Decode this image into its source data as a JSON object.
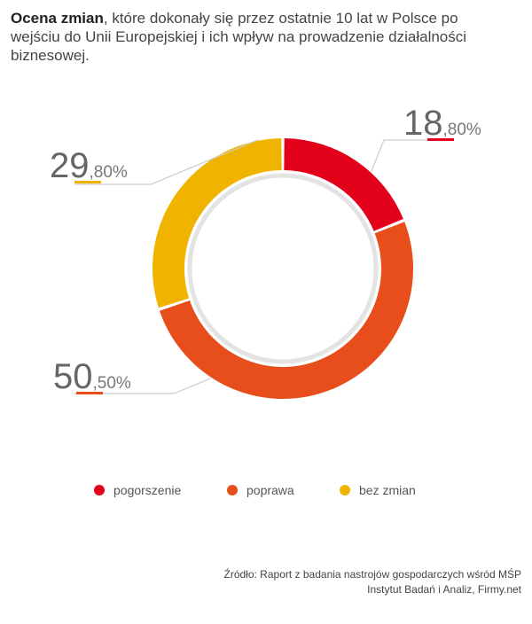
{
  "title": {
    "bold": "Ocena zmian",
    "rest": ", które dokonały się przez ostatnie 10 lat w Polsce po wejściu do Unii Europejskiej i ich wpływ na prowadzenie działalności biznesowej."
  },
  "chart_data": {
    "type": "pie",
    "style": "donut",
    "categories": [
      "pogorszenie",
      "poprawa",
      "bez zmian"
    ],
    "values": [
      18.8,
      50.5,
      29.8
    ],
    "labels": [
      {
        "int": "18",
        "dec": ",80%"
      },
      {
        "int": "50",
        "dec": ",50%"
      },
      {
        "int": "29",
        "dec": ",80%"
      }
    ],
    "colors": [
      "#e2001a",
      "#e84e1b",
      "#f0b400"
    ],
    "legend_position": "bottom"
  },
  "source": {
    "line1": "Źródło: Raport z badania nastrojów gospodarczych wśród MŚP",
    "line2": "Instytut Badań i Analiz, Firmy.net"
  }
}
